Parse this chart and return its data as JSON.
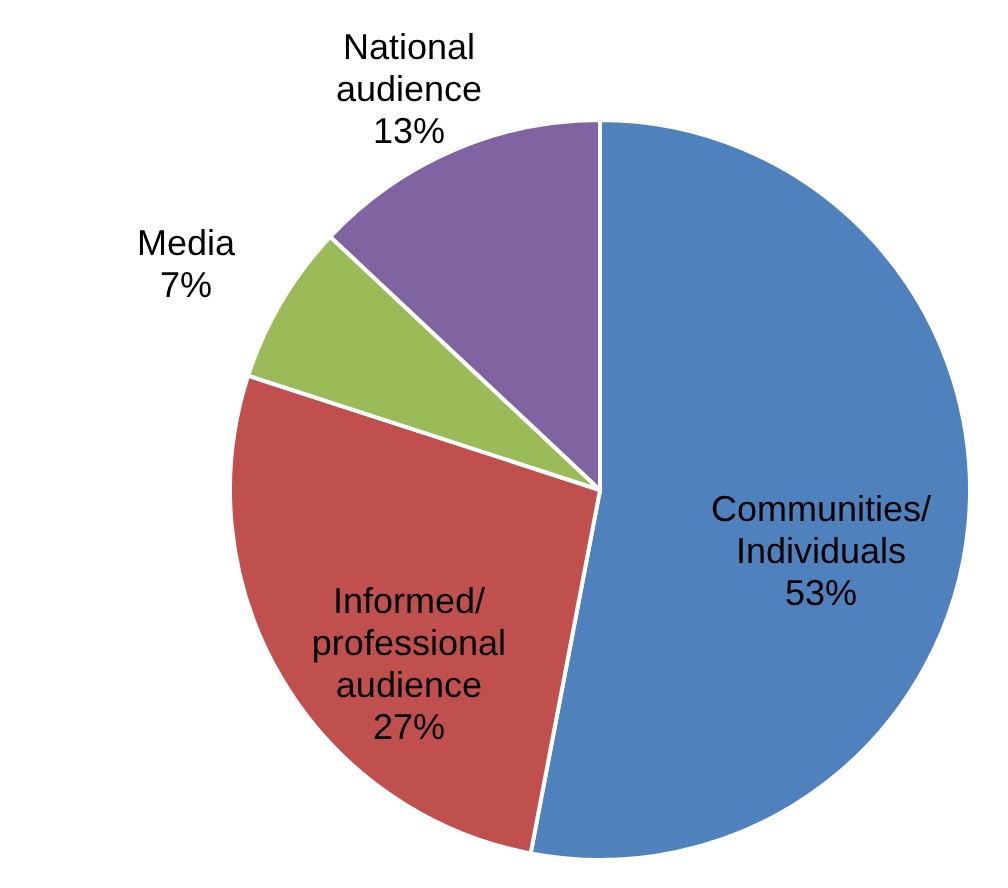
{
  "chart_data": {
    "type": "pie",
    "categories": [
      "Communities/Individuals",
      "Informed/professional audience",
      "Media",
      "National audience"
    ],
    "values": [
      53,
      27,
      7,
      13
    ],
    "colors": [
      "#4f81bd",
      "#c0504d",
      "#9bbb59",
      "#8064a2"
    ],
    "value_labels": [
      "53%",
      "27%",
      "7%",
      "13%"
    ]
  }
}
